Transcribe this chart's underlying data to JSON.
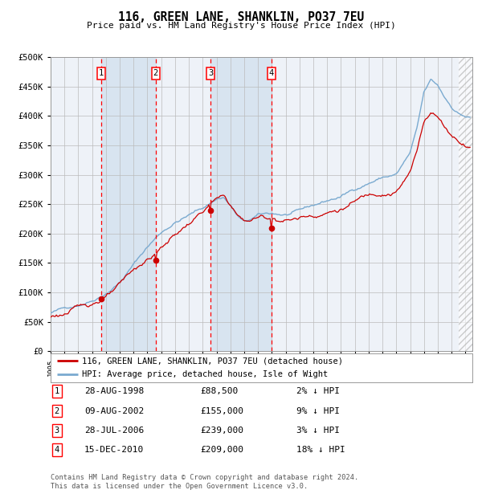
{
  "title": "116, GREEN LANE, SHANKLIN, PO37 7EU",
  "subtitle": "Price paid vs. HM Land Registry's House Price Index (HPI)",
  "bg_color": "#ffffff",
  "plot_bg_color": "#eef2f8",
  "grid_color": "#bbbbbb",
  "hpi_color": "#7aaad0",
  "price_color": "#cc0000",
  "shade_color": "#d8e4f0",
  "purchase_dates": [
    1998.66,
    2002.6,
    2006.57,
    2010.96
  ],
  "purchase_prices": [
    88500,
    155000,
    239000,
    209000
  ],
  "purchase_labels": [
    "1",
    "2",
    "3",
    "4"
  ],
  "purchase_hpi_pct": [
    "2%",
    "9%",
    "3%",
    "18%"
  ],
  "purchase_date_strs": [
    "28-AUG-1998",
    "09-AUG-2002",
    "28-JUL-2006",
    "15-DEC-2010"
  ],
  "purchase_price_strs": [
    "£88,500",
    "£155,000",
    "£239,000",
    "£209,000"
  ],
  "xmin": 1995.0,
  "xmax": 2025.5,
  "ymin": 0,
  "ymax": 500000,
  "yticks": [
    0,
    50000,
    100000,
    150000,
    200000,
    250000,
    300000,
    350000,
    400000,
    450000,
    500000
  ],
  "ytick_labels": [
    "£0",
    "£50K",
    "£100K",
    "£150K",
    "£200K",
    "£250K",
    "£300K",
    "£350K",
    "£400K",
    "£450K",
    "£500K"
  ],
  "legend_label_price": "116, GREEN LANE, SHANKLIN, PO37 7EU (detached house)",
  "legend_label_hpi": "HPI: Average price, detached house, Isle of Wight",
  "footer_line1": "Contains HM Land Registry data © Crown copyright and database right 2024.",
  "footer_line2": "This data is licensed under the Open Government Licence v3.0.",
  "hatch_start": 2024.5
}
